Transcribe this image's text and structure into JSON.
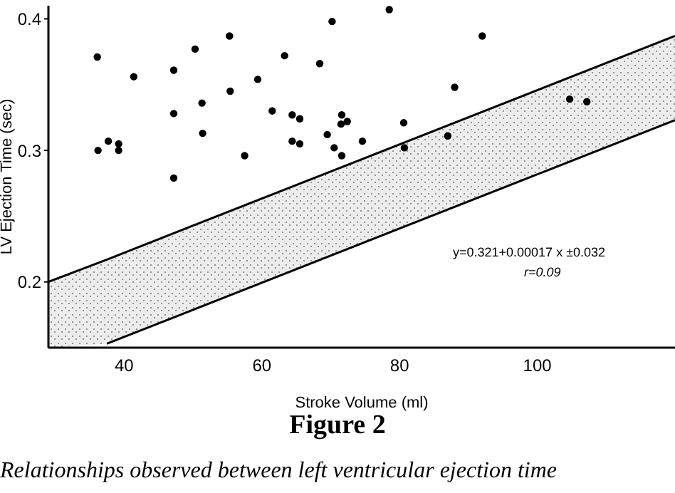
{
  "chart_data": {
    "type": "scatter",
    "title": "Figure 2",
    "xlabel": "Stroke Volume (ml)",
    "ylabel": "LV Ejection Time (sec)",
    "xlim": [
      29,
      120
    ],
    "xticks": [
      40,
      60,
      80,
      100
    ],
    "ylim": [
      0.15,
      0.41
    ],
    "yticks": [
      0.2,
      0.3,
      0.4
    ],
    "annotations": [
      "y=0.321+0.00017 x ±0.032",
      "r=0.09",
      "Relationships observed between left ventricular ejection time"
    ],
    "series": [
      {
        "type": "line",
        "marker": "none",
        "color": "#000000",
        "x": [
          29,
          37.5,
          120
        ],
        "values": [
          0.2,
          0.217,
          0.387
        ],
        "lower": [
          0.15,
          0.153,
          0.323
        ],
        "upper": [
          0.2,
          0.217,
          0.387
        ]
      },
      {
        "type": "line",
        "marker": "none",
        "color": "#000000",
        "x": [
          37.5,
          120
        ],
        "values": [
          0.153,
          0.323
        ]
      },
      {
        "marker": "circle",
        "color": "#000000",
        "x": [
          36.1,
          36.2,
          37.7,
          39.2,
          39.2,
          41.4,
          47.2,
          47.2,
          47.2,
          50.3,
          51.3,
          51.4,
          55.3,
          55.4,
          57.5,
          59.4,
          61.5,
          63.3,
          64.4,
          65.5,
          64.4,
          65.5,
          68.4,
          69.5,
          70.5,
          70.2,
          71.6,
          71.5,
          71.6,
          72.4,
          78.5,
          92.0,
          88.0,
          74.6,
          80.6,
          80.7,
          87.0,
          104.7,
          107.2
        ],
        "values": [
          0.371,
          0.3,
          0.307,
          0.305,
          0.3,
          0.356,
          0.361,
          0.328,
          0.279,
          0.377,
          0.336,
          0.313,
          0.387,
          0.345,
          0.296,
          0.354,
          0.33,
          0.372,
          0.327,
          0.324,
          0.307,
          0.305,
          0.366,
          0.312,
          0.302,
          0.398,
          0.327,
          0.32,
          0.296,
          0.322,
          0.407,
          0.387,
          0.348,
          0.307,
          0.321,
          0.302,
          0.311,
          0.339,
          0.337
        ]
      }
    ]
  }
}
